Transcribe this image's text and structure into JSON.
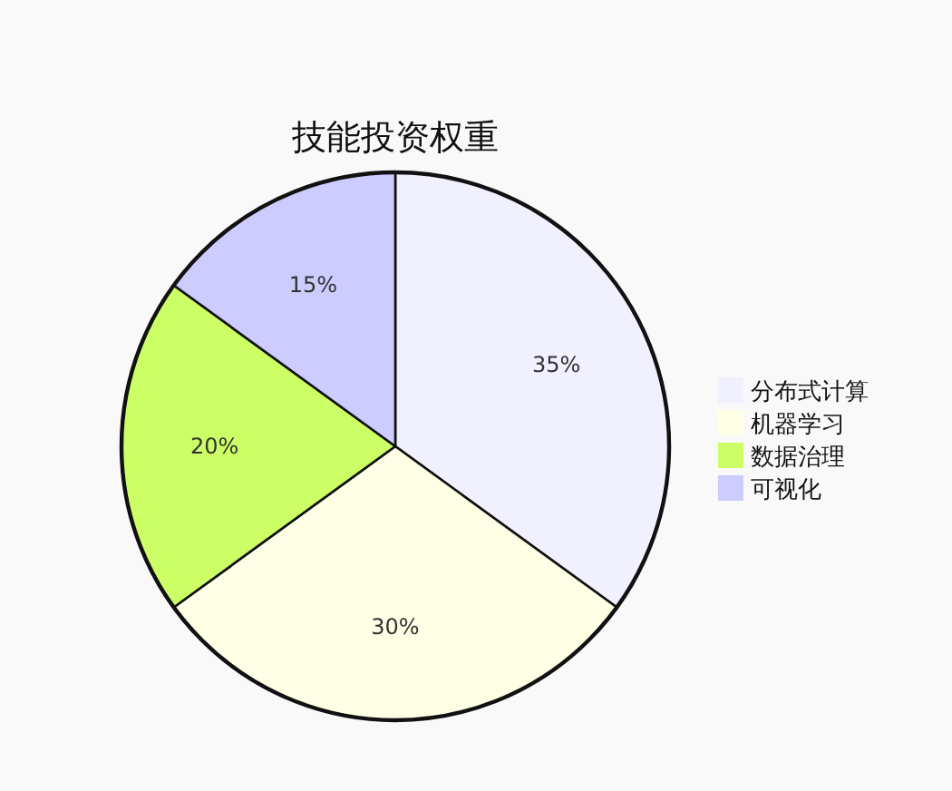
{
  "chart_data": {
    "type": "pie",
    "title": "技能投资权重",
    "categories": [
      "分布式计算",
      "机器学习",
      "数据治理",
      "可视化"
    ],
    "values": [
      35,
      30,
      20,
      15
    ],
    "value_labels": [
      "35%",
      "30%",
      "20%",
      "15%"
    ],
    "colors": [
      "#f0f0ff",
      "#ffffe6",
      "#ccff66",
      "#ccccff"
    ],
    "legend": "right"
  }
}
